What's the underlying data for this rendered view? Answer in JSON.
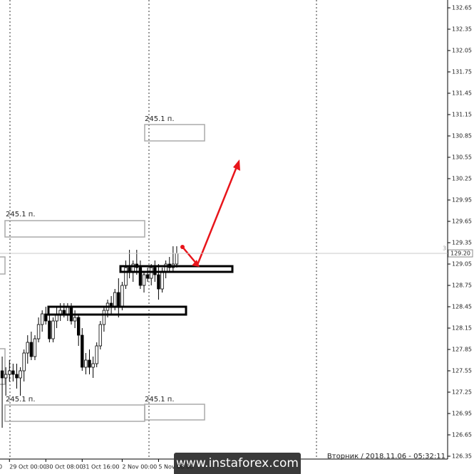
{
  "chart_data": {
    "type": "candlestick",
    "open": [
      127.55,
      127.45,
      127.5,
      127.55,
      127.5,
      127.45,
      127.55,
      127.8,
      127.95,
      127.75,
      128.0,
      128.2,
      128.35,
      128.25,
      128.0,
      128.25,
      128.35,
      128.4,
      128.35,
      128.45,
      128.25,
      128.3,
      128.05,
      127.6,
      127.7,
      127.6,
      127.65,
      127.9,
      128.2,
      128.4,
      128.5,
      128.45,
      128.65,
      128.45,
      128.75,
      129.0,
      128.95,
      129.05,
      129.0,
      128.75,
      128.9,
      128.85,
      129.0,
      128.9,
      128.7,
      128.95,
      129.05,
      129.0,
      129.05
    ],
    "high": [
      127.75,
      127.6,
      127.7,
      127.65,
      127.65,
      127.6,
      127.85,
      128.05,
      128.1,
      128.05,
      128.3,
      128.4,
      128.45,
      128.35,
      128.3,
      128.45,
      128.5,
      128.5,
      128.5,
      128.5,
      128.4,
      128.35,
      128.15,
      127.8,
      127.85,
      127.75,
      127.95,
      128.25,
      128.45,
      128.55,
      128.6,
      128.7,
      128.85,
      128.8,
      129.1,
      129.25,
      129.1,
      129.25,
      129.1,
      128.95,
      129.0,
      129.05,
      129.1,
      129.05,
      129.0,
      129.1,
      129.15,
      129.3,
      129.3
    ],
    "low": [
      126.75,
      127.2,
      127.4,
      127.4,
      127.3,
      127.2,
      127.4,
      127.65,
      127.7,
      127.7,
      127.95,
      128.1,
      128.2,
      127.95,
      127.95,
      128.15,
      128.25,
      128.3,
      128.25,
      128.2,
      128.15,
      127.9,
      127.55,
      127.5,
      127.5,
      127.45,
      127.6,
      127.85,
      128.1,
      128.3,
      128.35,
      128.4,
      128.3,
      128.4,
      128.7,
      128.85,
      128.8,
      128.9,
      128.7,
      128.65,
      128.8,
      128.75,
      128.8,
      128.55,
      128.65,
      128.85,
      128.95,
      128.95,
      129.0
    ],
    "close": [
      127.45,
      127.5,
      127.55,
      127.5,
      127.45,
      127.55,
      127.8,
      127.95,
      127.75,
      128.0,
      128.2,
      128.35,
      128.25,
      128.0,
      128.25,
      128.35,
      128.4,
      128.35,
      128.45,
      128.25,
      128.3,
      128.05,
      127.6,
      127.7,
      127.6,
      127.65,
      127.9,
      128.2,
      128.4,
      128.5,
      128.45,
      128.65,
      128.45,
      128.75,
      129.0,
      128.95,
      129.05,
      129.0,
      128.75,
      128.9,
      128.85,
      129.0,
      128.9,
      128.7,
      128.95,
      129.05,
      129.0,
      129.05,
      129.2
    ],
    "up_color": "#ffffff",
    "down_color": "#000000",
    "xlim": [
      -0.6,
      122.5
    ],
    "xticks": [
      {
        "value": -1,
        "label": "0"
      },
      {
        "value": 2,
        "label": "29 Oct 00:00"
      },
      {
        "value": 12,
        "label": "30 Oct 08:00"
      },
      {
        "value": 22,
        "label": "31 Oct 16:00"
      },
      {
        "value": 33,
        "label": "2 Nov 00:00"
      },
      {
        "value": 43,
        "label": "5 Nov 08:00"
      }
    ],
    "ylim": [
      126.31,
      132.76
    ],
    "yticks": [
      132.65,
      132.35,
      132.05,
      131.75,
      131.45,
      131.15,
      130.85,
      130.55,
      130.25,
      129.95,
      129.65,
      129.35,
      129.05,
      128.75,
      128.45,
      128.15,
      127.85,
      127.55,
      127.25,
      126.95,
      126.65,
      126.35
    ],
    "last_price": {
      "value": 129.2,
      "label": "129.20"
    },
    "annotations": [
      "245.1 п.",
      "245.1 п.",
      "245.1 п.",
      "245.1 п."
    ],
    "marker": "3",
    "footer": "Вторник  /  2018.11.06 - 05:32:11",
    "watermark": "www.instaforex.com"
  }
}
